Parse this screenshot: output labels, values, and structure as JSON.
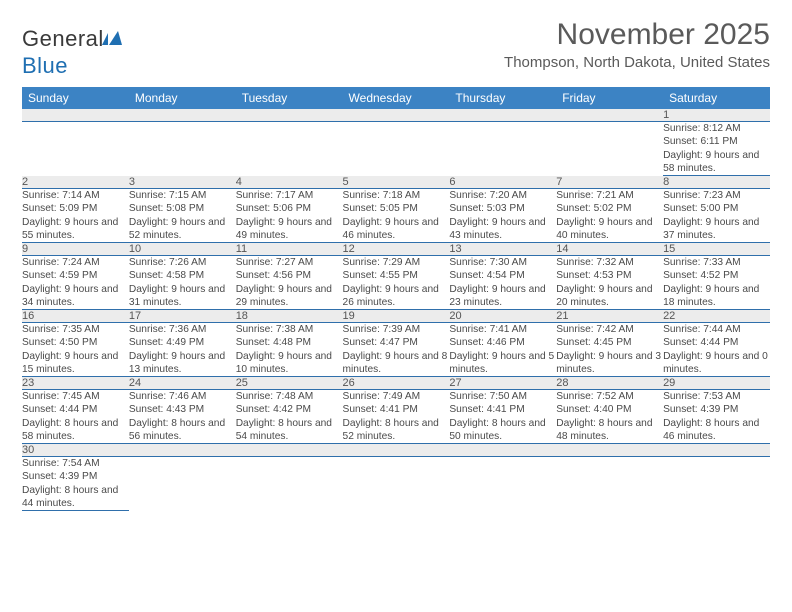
{
  "logo": {
    "general": "Genera",
    "l": "l",
    "blue": "Blue"
  },
  "title": "November 2025",
  "location": "Thompson, North Dakota, United States",
  "colors": {
    "header_bg": "#3c83c4",
    "header_text": "#ffffff",
    "daynum_bg": "#ececec",
    "row_border": "#2f6fab",
    "text": "#4a4a4a",
    "logo_blue": "#1f6fb2"
  },
  "weekdays": [
    "Sunday",
    "Monday",
    "Tuesday",
    "Wednesday",
    "Thursday",
    "Friday",
    "Saturday"
  ],
  "weeks": [
    [
      null,
      null,
      null,
      null,
      null,
      null,
      {
        "n": "1",
        "sr": "Sunrise: 8:12 AM",
        "ss": "Sunset: 6:11 PM",
        "dl": "Daylight: 9 hours and 58 minutes."
      }
    ],
    [
      {
        "n": "2",
        "sr": "Sunrise: 7:14 AM",
        "ss": "Sunset: 5:09 PM",
        "dl": "Daylight: 9 hours and 55 minutes."
      },
      {
        "n": "3",
        "sr": "Sunrise: 7:15 AM",
        "ss": "Sunset: 5:08 PM",
        "dl": "Daylight: 9 hours and 52 minutes."
      },
      {
        "n": "4",
        "sr": "Sunrise: 7:17 AM",
        "ss": "Sunset: 5:06 PM",
        "dl": "Daylight: 9 hours and 49 minutes."
      },
      {
        "n": "5",
        "sr": "Sunrise: 7:18 AM",
        "ss": "Sunset: 5:05 PM",
        "dl": "Daylight: 9 hours and 46 minutes."
      },
      {
        "n": "6",
        "sr": "Sunrise: 7:20 AM",
        "ss": "Sunset: 5:03 PM",
        "dl": "Daylight: 9 hours and 43 minutes."
      },
      {
        "n": "7",
        "sr": "Sunrise: 7:21 AM",
        "ss": "Sunset: 5:02 PM",
        "dl": "Daylight: 9 hours and 40 minutes."
      },
      {
        "n": "8",
        "sr": "Sunrise: 7:23 AM",
        "ss": "Sunset: 5:00 PM",
        "dl": "Daylight: 9 hours and 37 minutes."
      }
    ],
    [
      {
        "n": "9",
        "sr": "Sunrise: 7:24 AM",
        "ss": "Sunset: 4:59 PM",
        "dl": "Daylight: 9 hours and 34 minutes."
      },
      {
        "n": "10",
        "sr": "Sunrise: 7:26 AM",
        "ss": "Sunset: 4:58 PM",
        "dl": "Daylight: 9 hours and 31 minutes."
      },
      {
        "n": "11",
        "sr": "Sunrise: 7:27 AM",
        "ss": "Sunset: 4:56 PM",
        "dl": "Daylight: 9 hours and 29 minutes."
      },
      {
        "n": "12",
        "sr": "Sunrise: 7:29 AM",
        "ss": "Sunset: 4:55 PM",
        "dl": "Daylight: 9 hours and 26 minutes."
      },
      {
        "n": "13",
        "sr": "Sunrise: 7:30 AM",
        "ss": "Sunset: 4:54 PM",
        "dl": "Daylight: 9 hours and 23 minutes."
      },
      {
        "n": "14",
        "sr": "Sunrise: 7:32 AM",
        "ss": "Sunset: 4:53 PM",
        "dl": "Daylight: 9 hours and 20 minutes."
      },
      {
        "n": "15",
        "sr": "Sunrise: 7:33 AM",
        "ss": "Sunset: 4:52 PM",
        "dl": "Daylight: 9 hours and 18 minutes."
      }
    ],
    [
      {
        "n": "16",
        "sr": "Sunrise: 7:35 AM",
        "ss": "Sunset: 4:50 PM",
        "dl": "Daylight: 9 hours and 15 minutes."
      },
      {
        "n": "17",
        "sr": "Sunrise: 7:36 AM",
        "ss": "Sunset: 4:49 PM",
        "dl": "Daylight: 9 hours and 13 minutes."
      },
      {
        "n": "18",
        "sr": "Sunrise: 7:38 AM",
        "ss": "Sunset: 4:48 PM",
        "dl": "Daylight: 9 hours and 10 minutes."
      },
      {
        "n": "19",
        "sr": "Sunrise: 7:39 AM",
        "ss": "Sunset: 4:47 PM",
        "dl": "Daylight: 9 hours and 8 minutes."
      },
      {
        "n": "20",
        "sr": "Sunrise: 7:41 AM",
        "ss": "Sunset: 4:46 PM",
        "dl": "Daylight: 9 hours and 5 minutes."
      },
      {
        "n": "21",
        "sr": "Sunrise: 7:42 AM",
        "ss": "Sunset: 4:45 PM",
        "dl": "Daylight: 9 hours and 3 minutes."
      },
      {
        "n": "22",
        "sr": "Sunrise: 7:44 AM",
        "ss": "Sunset: 4:44 PM",
        "dl": "Daylight: 9 hours and 0 minutes."
      }
    ],
    [
      {
        "n": "23",
        "sr": "Sunrise: 7:45 AM",
        "ss": "Sunset: 4:44 PM",
        "dl": "Daylight: 8 hours and 58 minutes."
      },
      {
        "n": "24",
        "sr": "Sunrise: 7:46 AM",
        "ss": "Sunset: 4:43 PM",
        "dl": "Daylight: 8 hours and 56 minutes."
      },
      {
        "n": "25",
        "sr": "Sunrise: 7:48 AM",
        "ss": "Sunset: 4:42 PM",
        "dl": "Daylight: 8 hours and 54 minutes."
      },
      {
        "n": "26",
        "sr": "Sunrise: 7:49 AM",
        "ss": "Sunset: 4:41 PM",
        "dl": "Daylight: 8 hours and 52 minutes."
      },
      {
        "n": "27",
        "sr": "Sunrise: 7:50 AM",
        "ss": "Sunset: 4:41 PM",
        "dl": "Daylight: 8 hours and 50 minutes."
      },
      {
        "n": "28",
        "sr": "Sunrise: 7:52 AM",
        "ss": "Sunset: 4:40 PM",
        "dl": "Daylight: 8 hours and 48 minutes."
      },
      {
        "n": "29",
        "sr": "Sunrise: 7:53 AM",
        "ss": "Sunset: 4:39 PM",
        "dl": "Daylight: 8 hours and 46 minutes."
      }
    ],
    [
      {
        "n": "30",
        "sr": "Sunrise: 7:54 AM",
        "ss": "Sunset: 4:39 PM",
        "dl": "Daylight: 8 hours and 44 minutes."
      },
      null,
      null,
      null,
      null,
      null,
      null
    ]
  ]
}
